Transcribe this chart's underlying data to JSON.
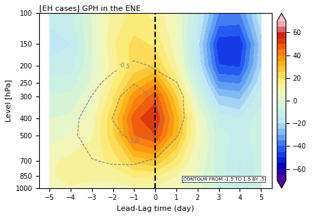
{
  "title": "[EH cases] GPH in the ENE",
  "xlabel": "Lead-Lag time (day)",
  "ylabel": "Level [hPa]",
  "colorbar_label": "",
  "contour_note": "CONTOUR FROM -1.5 TO 1.5 BY .5",
  "x_ticks": [
    -5,
    -4,
    -3,
    -2,
    -1,
    0,
    1,
    2,
    3,
    4,
    5
  ],
  "y_levels": [
    100,
    150,
    200,
    250,
    300,
    400,
    500,
    700,
    850,
    1000
  ],
  "colorbar_ticks": [
    -60,
    -40,
    -20,
    0,
    20,
    40,
    60
  ],
  "vmin": -70,
  "vmax": 70,
  "contour_levels": [
    -1.5,
    -1.0,
    -0.5,
    0.0,
    0.5,
    1.0,
    1.5
  ],
  "dashed_line_x": 0
}
